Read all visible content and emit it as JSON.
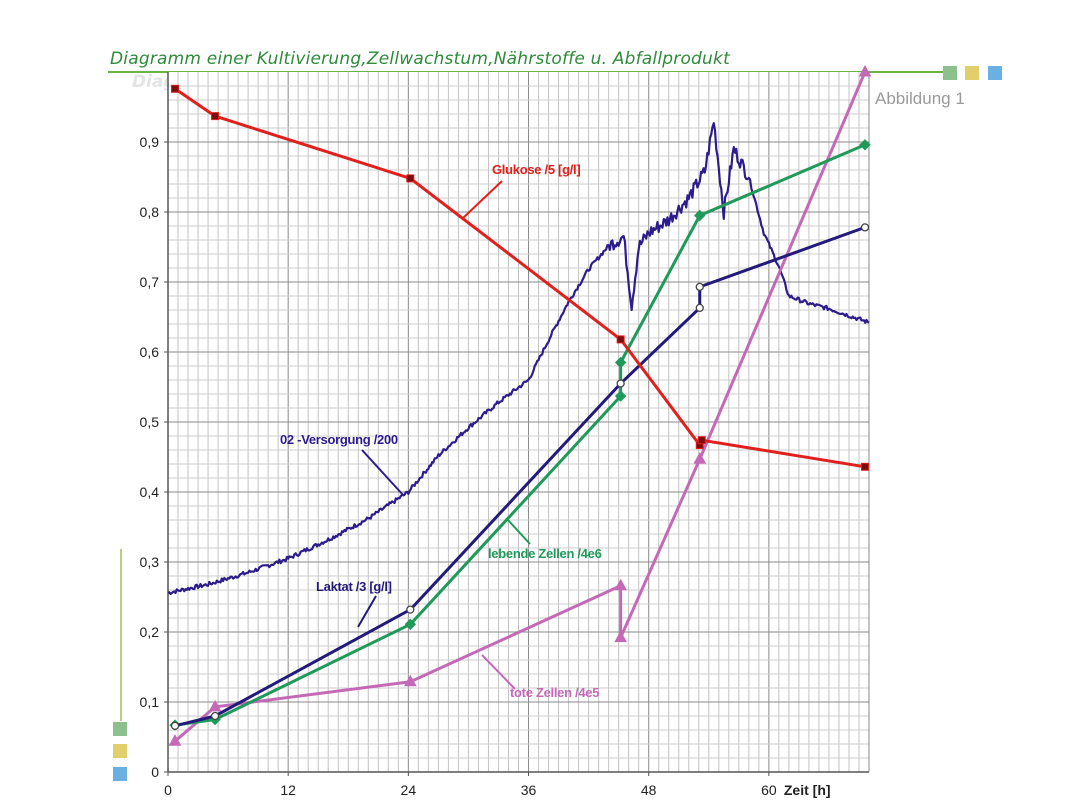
{
  "header": {
    "title": "Diagramm einer Kultivierung,Zellwachstum,Nährstoffe u. Abfallprodukt",
    "subtitle": "Abbildung 1"
  },
  "decor": {
    "top_squares": [
      "#8cc08c",
      "#e0cf6a",
      "#6ab0e0"
    ],
    "side_squares": [
      "#8cc08c",
      "#e0cf6a",
      "#6ab0e0"
    ]
  },
  "chart_data": {
    "type": "line",
    "xlabel": "Zeit [h]",
    "ylabel": "",
    "xlim": [
      0,
      70
    ],
    "ylim": [
      0,
      1.0
    ],
    "xticks": [
      0,
      12,
      24,
      36,
      48,
      60
    ],
    "xtick_labels": [
      "0",
      "12",
      "24",
      "36",
      "48",
      "60"
    ],
    "yticks": [
      0,
      0.1,
      0.2,
      0.3,
      0.4,
      0.5,
      0.6,
      0.7,
      0.8,
      0.9
    ],
    "ytick_labels": [
      "0",
      "0,1",
      "0,2",
      "0,3",
      "0,4",
      "0,5",
      "0,6",
      "0,7",
      "0,8",
      "0,9"
    ],
    "grid": true,
    "series": [
      {
        "name": "Glukose /5 [g/l]",
        "color": "#e0201c",
        "marker": "square",
        "x": [
          0.7,
          4.7,
          24.2,
          45.2,
          53.1,
          53.3,
          69.6
        ],
        "y": [
          0.976,
          0.937,
          0.848,
          0.618,
          0.467,
          0.474,
          0.436
        ]
      },
      {
        "name": "Laktat /3 [g/l]",
        "color": "#231a7a",
        "marker": "circle",
        "x": [
          0.7,
          4.7,
          24.2,
          45.2,
          53.1,
          53.1,
          69.6
        ],
        "y": [
          0.066,
          0.08,
          0.232,
          0.555,
          0.663,
          0.693,
          0.778
        ]
      },
      {
        "name": "lebende Zellen /4e6",
        "color": "#1f9a5a",
        "marker": "diamond",
        "x": [
          0.7,
          4.7,
          24.2,
          45.2,
          45.2,
          53.1,
          69.6
        ],
        "y": [
          0.067,
          0.075,
          0.211,
          0.537,
          0.585,
          0.795,
          0.896
        ]
      },
      {
        "name": "tote Zellen /4e5",
        "color": "#c469b8",
        "marker": "triangle",
        "x": [
          0.7,
          4.7,
          24.2,
          45.2,
          45.2,
          53.1,
          69.6
        ],
        "y": [
          0.044,
          0.093,
          0.129,
          0.266,
          0.192,
          0.447,
          1.0
        ]
      },
      {
        "name": "02 -Versorgung /200",
        "color": "#2c1c8c",
        "marker": "none",
        "x": [
          0,
          4,
          8,
          12,
          16,
          20,
          24,
          27,
          30,
          33,
          36,
          38,
          40,
          42,
          44,
          45.5,
          46.3,
          47,
          48,
          50,
          52,
          53.6,
          54.5,
          55.5,
          56.5,
          58,
          59.5,
          61,
          62,
          64,
          66,
          68,
          70
        ],
        "y": [
          0.256,
          0.268,
          0.285,
          0.305,
          0.332,
          0.362,
          0.4,
          0.452,
          0.492,
          0.528,
          0.56,
          0.617,
          0.672,
          0.718,
          0.752,
          0.765,
          0.667,
          0.75,
          0.77,
          0.789,
          0.82,
          0.858,
          0.93,
          0.8,
          0.89,
          0.85,
          0.77,
          0.722,
          0.68,
          0.669,
          0.662,
          0.652,
          0.642
        ]
      }
    ],
    "annotations": [
      {
        "text": "Glukose /5 [g/l]",
        "series": 0
      },
      {
        "text": "02 -Versorgung /200",
        "series": 4
      },
      {
        "text": "lebende Zellen /4e6",
        "series": 2
      },
      {
        "text": "Laktat /3 [g/l]",
        "series": 1
      },
      {
        "text": "tote Zellen /4e5",
        "series": 3
      }
    ]
  }
}
